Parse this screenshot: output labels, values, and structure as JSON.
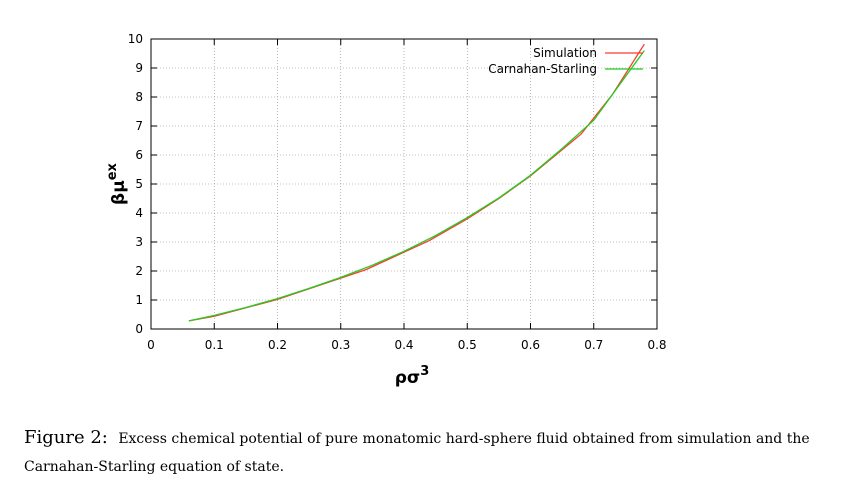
{
  "chart_data": {
    "type": "line",
    "xlabel_base": "ρσ",
    "xlabel_sup": "3",
    "ylabel_base": "βμ",
    "ylabel_sup": "ex",
    "xlim": [
      0,
      0.8
    ],
    "ylim": [
      0,
      10
    ],
    "x_ticks": [
      0,
      0.1,
      0.2,
      0.3,
      0.4,
      0.5,
      0.6,
      0.7,
      0.8
    ],
    "x_tick_labels": [
      "0",
      "0.1",
      "0.2",
      "0.3",
      "0.4",
      "0.5",
      "0.6",
      "0.7",
      "0.8"
    ],
    "y_ticks": [
      0,
      1,
      2,
      3,
      4,
      5,
      6,
      7,
      8,
      9,
      10
    ],
    "y_tick_labels": [
      "0",
      "1",
      "2",
      "3",
      "4",
      "5",
      "6",
      "7",
      "8",
      "9",
      "10"
    ],
    "grid": true,
    "legend_position": "top-right",
    "series": [
      {
        "name": "Simulation",
        "color": "#ff3b30",
        "points": [
          [
            0.06,
            0.28
          ],
          [
            0.1,
            0.44
          ],
          [
            0.2,
            1.02
          ],
          [
            0.34,
            2.05
          ],
          [
            0.44,
            3.05
          ],
          [
            0.5,
            3.8
          ],
          [
            0.55,
            4.5
          ],
          [
            0.6,
            5.28
          ],
          [
            0.68,
            6.72
          ],
          [
            0.73,
            8.1
          ],
          [
            0.78,
            9.82
          ]
        ]
      },
      {
        "name": "Carnahan-Starling",
        "color": "#22cc22",
        "points": [
          [
            0.06,
            0.28
          ],
          [
            0.1,
            0.47
          ],
          [
            0.15,
            0.74
          ],
          [
            0.2,
            1.05
          ],
          [
            0.25,
            1.4
          ],
          [
            0.3,
            1.78
          ],
          [
            0.35,
            2.2
          ],
          [
            0.4,
            2.68
          ],
          [
            0.45,
            3.22
          ],
          [
            0.5,
            3.84
          ],
          [
            0.55,
            4.52
          ],
          [
            0.6,
            5.3
          ],
          [
            0.65,
            6.22
          ],
          [
            0.7,
            7.2
          ],
          [
            0.73,
            8.1
          ],
          [
            0.78,
            9.6
          ]
        ]
      }
    ]
  },
  "caption": {
    "label": "Figure 2:",
    "text": "Excess chemical potential of pure monatomic hard-sphere fluid obtained from simulation and the Carnahan-Starling equation of state."
  }
}
